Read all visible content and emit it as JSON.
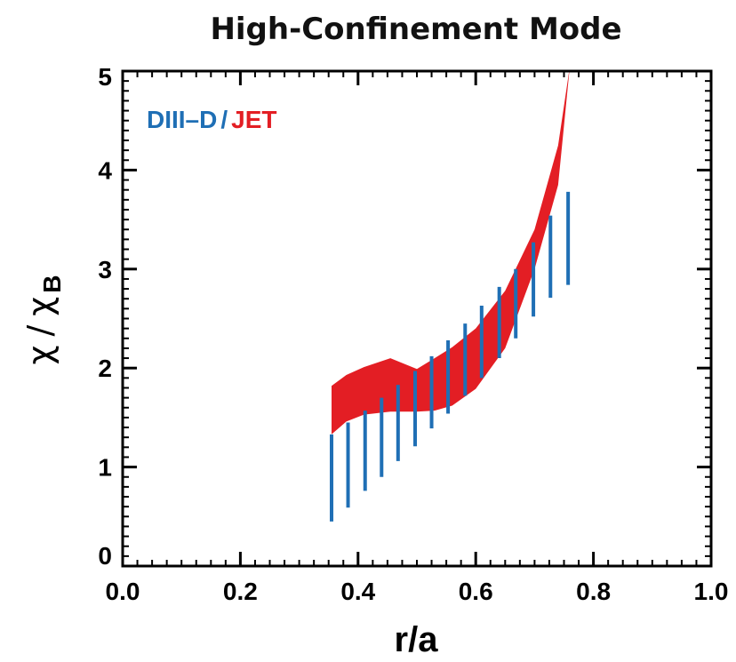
{
  "chart_data": {
    "type": "area",
    "title": "High-Confinement Mode",
    "xlabel": "r/a",
    "ylabel": {
      "symbol": "χ",
      "separator": "/",
      "sub_symbol": "χ",
      "subscript": "B"
    },
    "xlim": [
      0.0,
      1.0
    ],
    "ylim": [
      0,
      5
    ],
    "xticks": [
      "0.0",
      "0.2",
      "0.4",
      "0.6",
      "0.8",
      "1.0"
    ],
    "yticks": [
      "0",
      "1",
      "2",
      "3",
      "4",
      "5"
    ],
    "legend": {
      "placement": "top-left",
      "entries": [
        {
          "label": "DIII–D",
          "color": "#1f6fb5"
        },
        {
          "label": "/",
          "color": "#1f6fb5"
        },
        {
          "label": "JET",
          "color": "#e31e24"
        }
      ]
    },
    "series": [
      {
        "name": "JET",
        "kind": "band",
        "color": "#e31e24",
        "x": [
          0.355,
          0.38,
          0.41,
          0.455,
          0.5,
          0.53,
          0.56,
          0.6,
          0.65,
          0.7,
          0.74,
          0.76,
          0.775
        ],
        "upper": [
          1.82,
          1.93,
          2.01,
          2.1,
          1.99,
          2.1,
          2.21,
          2.4,
          2.78,
          3.4,
          4.25,
          5.05,
          5.05
        ],
        "lower": [
          1.33,
          1.46,
          1.53,
          1.56,
          1.56,
          1.57,
          1.62,
          1.79,
          2.2,
          3.0,
          3.85,
          5.05,
          5.05
        ]
      },
      {
        "name": "DIII–D",
        "kind": "error_bars",
        "color": "#1f6fb5",
        "x": [
          0.355,
          0.383,
          0.412,
          0.44,
          0.468,
          0.497,
          0.525,
          0.553,
          0.582,
          0.61,
          0.64,
          0.668,
          0.698,
          0.727,
          0.757
        ],
        "low": [
          0.45,
          0.59,
          0.76,
          0.9,
          1.06,
          1.21,
          1.39,
          1.54,
          1.72,
          1.9,
          2.1,
          2.3,
          2.52,
          2.71,
          2.84
        ],
        "high": [
          1.33,
          1.45,
          1.57,
          1.7,
          1.83,
          1.97,
          2.12,
          2.28,
          2.45,
          2.63,
          2.82,
          3.0,
          3.27,
          3.54,
          3.78
        ]
      }
    ]
  }
}
